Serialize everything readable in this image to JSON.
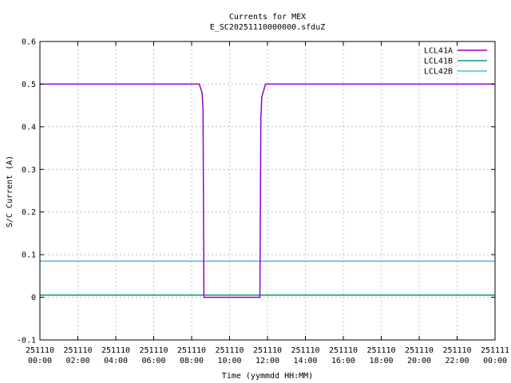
{
  "chart_data": {
    "type": "line",
    "title": "Currents for MEX",
    "subtitle": "E_SC20251110000000.sfduZ",
    "xlabel": "Time (yymmdd HH:MM)",
    "ylabel": "S/C Current (A)",
    "xlim": [
      0,
      24
    ],
    "ylim": [
      -0.1,
      0.6
    ],
    "grid": true,
    "legend_position": "top-right",
    "x_ticks": [
      {
        "value": 0,
        "line1": "251110",
        "line2": "00:00"
      },
      {
        "value": 2,
        "line1": "251110",
        "line2": "02:00"
      },
      {
        "value": 4,
        "line1": "251110",
        "line2": "04:00"
      },
      {
        "value": 6,
        "line1": "251110",
        "line2": "06:00"
      },
      {
        "value": 8,
        "line1": "251110",
        "line2": "08:00"
      },
      {
        "value": 10,
        "line1": "251110",
        "line2": "10:00"
      },
      {
        "value": 12,
        "line1": "251110",
        "line2": "12:00"
      },
      {
        "value": 14,
        "line1": "251110",
        "line2": "14:00"
      },
      {
        "value": 16,
        "line1": "251110",
        "line2": "16:00"
      },
      {
        "value": 18,
        "line1": "251110",
        "line2": "18:00"
      },
      {
        "value": 20,
        "line1": "251110",
        "line2": "20:00"
      },
      {
        "value": 22,
        "line1": "251110",
        "line2": "22:00"
      },
      {
        "value": 24,
        "line1": "251111",
        "line2": "00:00"
      }
    ],
    "y_ticks": [
      {
        "value": -0.1,
        "label": "-0.1"
      },
      {
        "value": 0,
        "label": "0"
      },
      {
        "value": 0.1,
        "label": "0.1"
      },
      {
        "value": 0.2,
        "label": "0.2"
      },
      {
        "value": 0.3,
        "label": "0.3"
      },
      {
        "value": 0.4,
        "label": "0.4"
      },
      {
        "value": 0.5,
        "label": "0.5"
      },
      {
        "value": 0.6,
        "label": "0.6"
      }
    ],
    "series": [
      {
        "name": "LCL41A",
        "color": "#9400d3",
        "x": [
          0,
          8.4,
          8.55,
          8.6,
          8.65,
          11.6,
          11.65,
          11.7,
          11.9,
          24
        ],
        "values": [
          0.5,
          0.5,
          0.48,
          0.44,
          0.0,
          0.0,
          0.42,
          0.47,
          0.5,
          0.5
        ]
      },
      {
        "name": "LCL41B",
        "color": "#009e73",
        "x": [
          0,
          24
        ],
        "values": [
          0.005,
          0.005
        ]
      },
      {
        "name": "LCL42B",
        "color": "#56b4e9",
        "x": [
          0,
          24
        ],
        "values": [
          0.085,
          0.085
        ]
      }
    ]
  }
}
